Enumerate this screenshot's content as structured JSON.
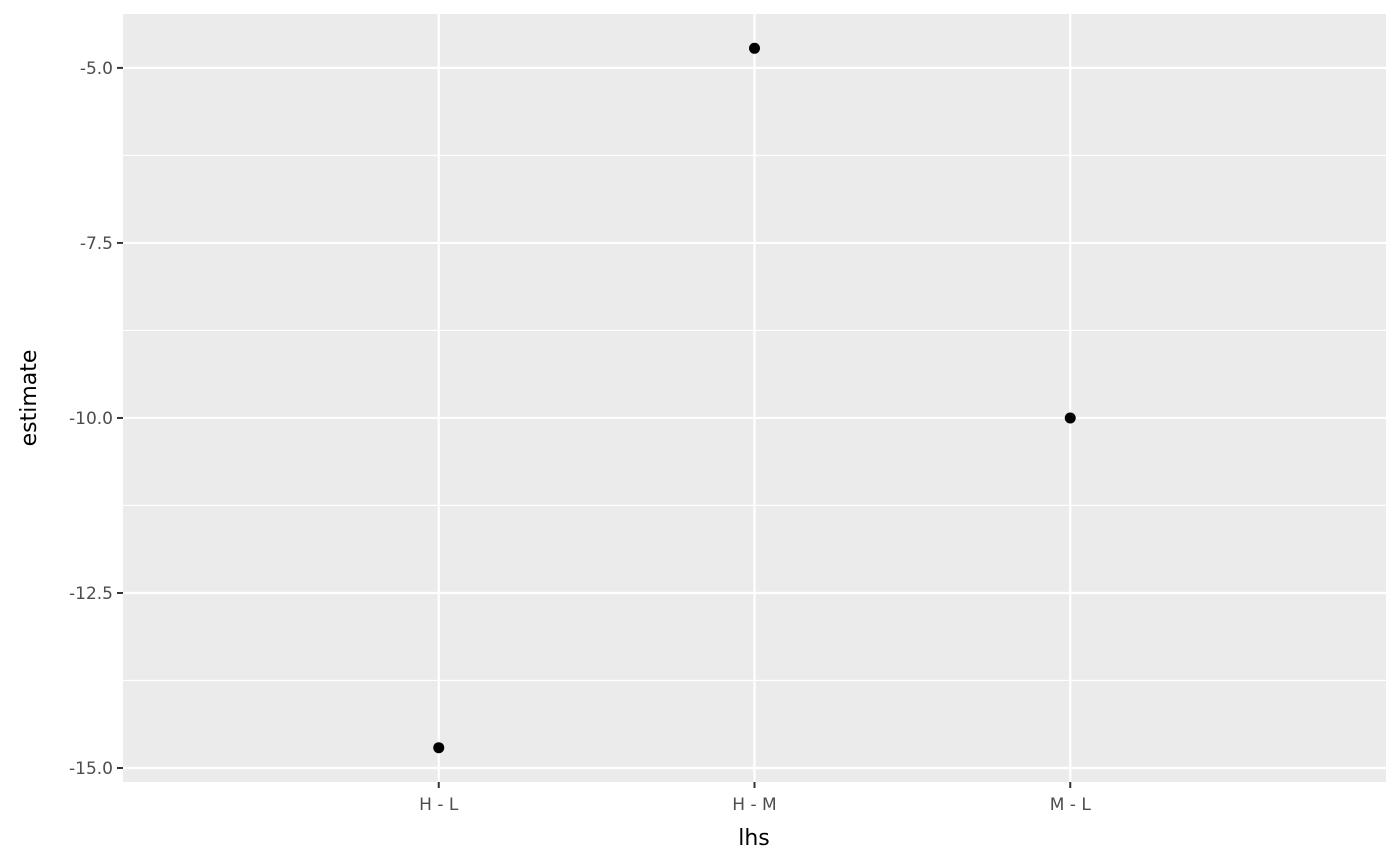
{
  "chart_data": {
    "type": "scatter",
    "title": "",
    "xlabel": "lhs",
    "ylabel": "estimate",
    "categories": [
      "H - L",
      "H - M",
      "M - L"
    ],
    "values": [
      -14.71,
      -4.72,
      -10.0
    ],
    "ylim": [
      -15.2,
      -4.23
    ],
    "yticks": [
      -15.0,
      -12.5,
      -10.0,
      -7.5,
      -5.0
    ],
    "ytick_labels": [
      "-15.0",
      "-12.5",
      "-10.0",
      "-7.5",
      "-5.0"
    ],
    "grid": true,
    "panel_background": "#ebebeb",
    "grid_color": "#ffffff",
    "point_color": "#000000"
  }
}
